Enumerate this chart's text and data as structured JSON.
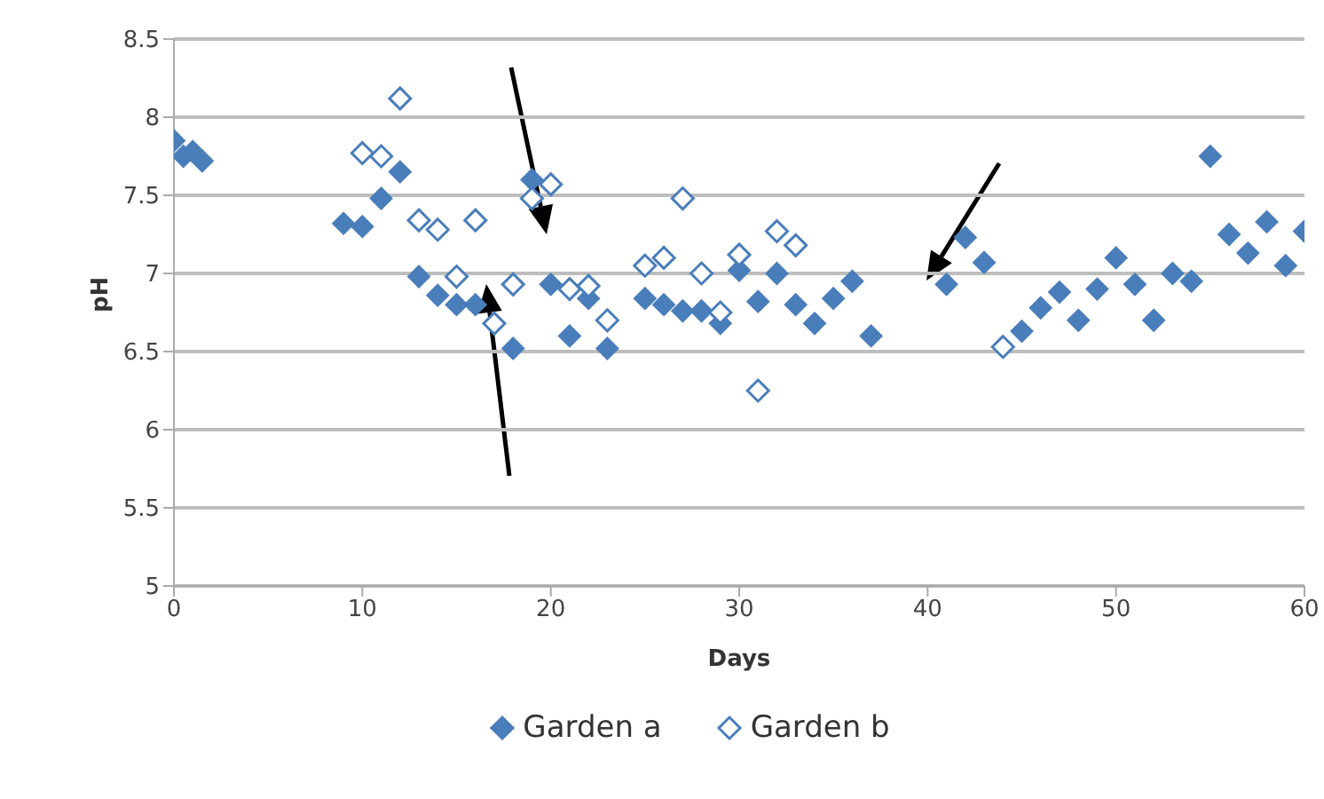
{
  "chart_data": {
    "type": "scatter",
    "xlabel": "Days",
    "ylabel": "pH",
    "xlim": [
      0,
      60
    ],
    "xticks": [
      0,
      10,
      20,
      30,
      40,
      50,
      60
    ],
    "ylim": [
      5,
      8.5
    ],
    "yticks": [
      5,
      5.5,
      6,
      6.5,
      7,
      7.5,
      8,
      8.5
    ],
    "grid": "y",
    "legend": "bottom",
    "marker": "diamond",
    "series": [
      {
        "name": "Garden a",
        "color": "#4a7ebb",
        "x": [
          0,
          0.5,
          1,
          1.5,
          9,
          10,
          11,
          12,
          13,
          14,
          15,
          16,
          18,
          19,
          20,
          21,
          22,
          23,
          25,
          26,
          27,
          28,
          29,
          30,
          31,
          32,
          33,
          34,
          35,
          36,
          37,
          41,
          42,
          43,
          45,
          46,
          47,
          48,
          49,
          50,
          51,
          52,
          53,
          54,
          55,
          56,
          57,
          58,
          59,
          60
        ],
        "values": [
          7.85,
          7.75,
          7.78,
          7.72,
          7.32,
          7.3,
          7.48,
          7.65,
          6.98,
          6.86,
          6.8,
          6.8,
          6.52,
          7.6,
          6.93,
          6.6,
          6.84,
          6.52,
          6.84,
          6.8,
          6.76,
          6.76,
          6.68,
          7.02,
          6.82,
          7.0,
          6.8,
          6.68,
          6.84,
          6.95,
          6.6,
          6.93,
          7.23,
          7.07,
          6.63,
          6.78,
          6.88,
          6.7,
          6.9,
          7.1,
          6.93,
          6.7,
          7.0,
          6.95,
          7.75,
          7.25,
          7.13,
          7.33,
          7.05,
          7.27
        ]
      },
      {
        "name": "Garden b",
        "color": "#4a7ebb",
        "x": [
          10,
          11,
          12,
          13,
          14,
          15,
          16,
          17,
          18,
          19,
          20,
          21,
          22,
          23,
          25,
          26,
          27,
          28,
          29,
          30,
          31,
          32,
          33,
          44
        ],
        "values": [
          7.77,
          7.75,
          8.12,
          7.34,
          7.28,
          6.98,
          7.34,
          6.68,
          6.93,
          7.48,
          7.57,
          6.9,
          6.92,
          6.7,
          7.05,
          7.1,
          7.48,
          7.0,
          6.75,
          7.12,
          6.25,
          7.27,
          7.18,
          6.53
        ]
      }
    ]
  }
}
